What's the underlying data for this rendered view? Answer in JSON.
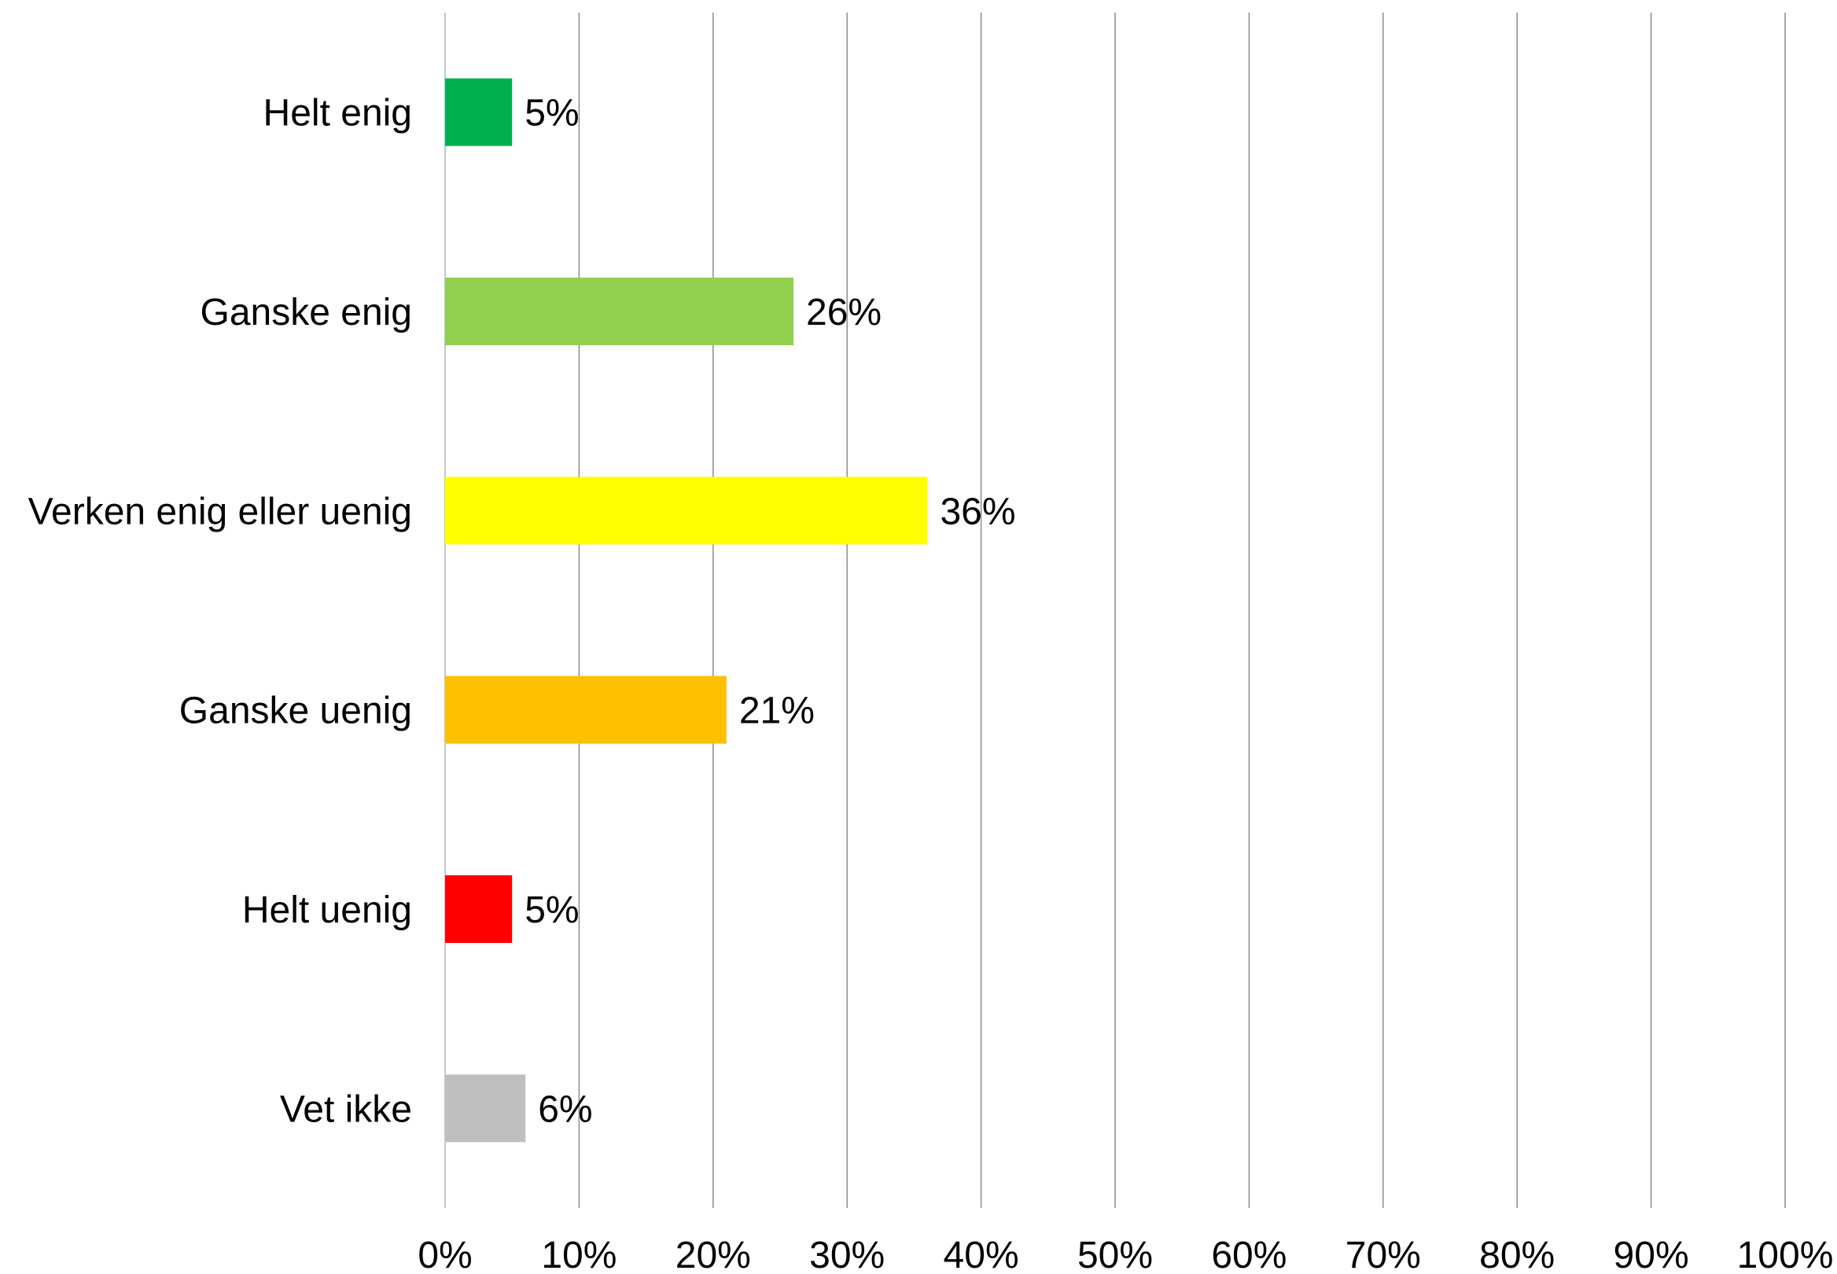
{
  "chart_data": {
    "type": "bar",
    "orientation": "horizontal",
    "categories": [
      "Helt enig",
      "Ganske enig",
      "Verken enig eller uenig",
      "Ganske uenig",
      "Helt uenig",
      "Vet ikke"
    ],
    "values": [
      5,
      26,
      36,
      21,
      5,
      6
    ],
    "value_labels": [
      "5%",
      "26%",
      "36%",
      "21%",
      "5%",
      "6%"
    ],
    "colors": [
      "#00B050",
      "#92D050",
      "#FFFF00",
      "#FFC000",
      "#FF0000",
      "#BFBFBF"
    ],
    "xlim": [
      0,
      100
    ],
    "x_ticks": [
      0,
      10,
      20,
      30,
      40,
      50,
      60,
      70,
      80,
      90,
      100
    ],
    "x_tick_labels": [
      "0%",
      "10%",
      "20%",
      "30%",
      "40%",
      "50%",
      "60%",
      "70%",
      "80%",
      "90%",
      "100%"
    ],
    "grid": "vertical",
    "legend": "none",
    "gridline_color": "#8C8C8C",
    "axis_color": "#BCC9D8"
  }
}
